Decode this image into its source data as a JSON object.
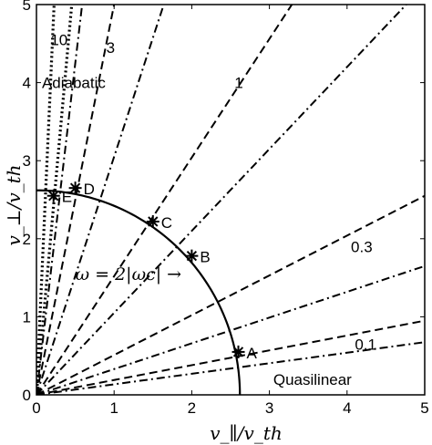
{
  "chart_data": {
    "type": "line",
    "xlabel": "v_∥/v_th",
    "ylabel": "v_⊥/v_th",
    "xlim": [
      0,
      5
    ],
    "ylim": [
      0,
      5
    ],
    "xticks": [
      "0",
      "1",
      "2",
      "3",
      "4",
      "5"
    ],
    "yticks": [
      "0",
      "1",
      "2",
      "3",
      "4",
      "5"
    ],
    "grid": false,
    "resonance_curve": {
      "label": "ω = 2|ωc| →",
      "radius": 2.62,
      "style": "solid"
    },
    "lines": [
      {
        "label": "10",
        "slope": 22,
        "style": "dotted"
      },
      {
        "label": "",
        "slope": 11,
        "style": "dotted"
      },
      {
        "label": "",
        "slope": 8.5,
        "style": "dashdot"
      },
      {
        "label": "3",
        "slope": 5.0,
        "style": "dashed"
      },
      {
        "label": "",
        "slope": 3.05,
        "style": "dashdot"
      },
      {
        "label": "1",
        "slope": 1.52,
        "style": "dashed"
      },
      {
        "label": "",
        "slope": 1.05,
        "style": "dashdot"
      },
      {
        "label": "0.3",
        "slope": 0.51,
        "style": "dashed"
      },
      {
        "label": "",
        "slope": 0.33,
        "style": "dashdot"
      },
      {
        "label": "0.1",
        "slope": 0.19,
        "style": "dashed"
      },
      {
        "label": "",
        "slope": 0.135,
        "style": "dashdot"
      }
    ],
    "points": [
      {
        "label": "A",
        "x": 2.6,
        "y": 0.55
      },
      {
        "label": "B",
        "x": 2.0,
        "y": 1.78
      },
      {
        "label": "C",
        "x": 1.5,
        "y": 2.22
      },
      {
        "label": "D",
        "x": 0.5,
        "y": 2.65
      },
      {
        "label": "E",
        "x": 0.22,
        "y": 2.55
      }
    ],
    "annotations": [
      {
        "text": "Adiabatic",
        "x": 0.07,
        "y": 4.0
      },
      {
        "text": "Quasilinear",
        "x": 3.05,
        "y": 0.2
      },
      {
        "text": "10",
        "x": 0.18,
        "y": 4.55
      },
      {
        "text": "3",
        "x": 0.9,
        "y": 4.45
      },
      {
        "text": "1",
        "x": 2.55,
        "y": 4.0
      },
      {
        "text": "0.3",
        "x": 4.05,
        "y": 1.9
      },
      {
        "text": "0.1",
        "x": 4.1,
        "y": 0.65
      }
    ]
  }
}
